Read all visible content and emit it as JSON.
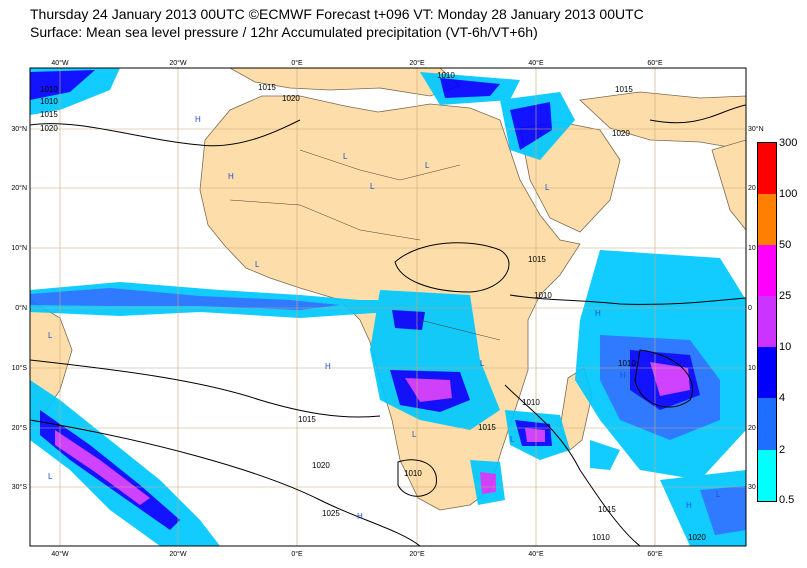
{
  "header": {
    "line1": "Thursday 24 January 2013 00UTC ©ECMWF Forecast t+096 VT: Monday 28 January 2013 00UTC",
    "line2": "Surface: Mean sea level pressure / 12hr Accumulated precipitation (VT-6h/VT+6h)"
  },
  "map": {
    "lon_labels": [
      "40°W",
      "20°W",
      "0°E",
      "20°E",
      "40°E",
      "60°E"
    ],
    "lat_labels": [
      "30°N",
      "20°N",
      "10°N",
      "0°N",
      "10°S",
      "20°S",
      "30°S"
    ],
    "right_lat_labels": [
      "30°N",
      "20",
      "10",
      "0",
      "10",
      "20",
      "30"
    ],
    "isobar_labels": [
      "1010",
      "1010",
      "1015",
      "1020",
      "1015",
      "1020",
      "1015",
      "1020",
      "1010",
      "1015",
      "1010",
      "1010",
      "1010",
      "1015",
      "1015",
      "1020",
      "1025",
      "1010",
      "1010",
      "1015",
      "1020"
    ],
    "pressure_centers": [
      "H",
      "H",
      "L",
      "L",
      "L",
      "H",
      "L",
      "L",
      "H",
      "H",
      "L",
      "L",
      "L",
      "L",
      "H",
      "L",
      "H",
      "L"
    ],
    "colors": {
      "land": "#fddeaa",
      "ocean": "#ffffff",
      "grid": "#c8a87a",
      "isobar": "#000000"
    }
  },
  "legend": {
    "levels": [
      "300",
      "100",
      "50",
      "25",
      "10",
      "4",
      "2",
      "0.5"
    ],
    "colors": [
      "#ff0000",
      "#ff8000",
      "#ff00ff",
      "#cc33ff",
      "#0000ff",
      "#1e6fff",
      "#00c8ff"
    ]
  }
}
